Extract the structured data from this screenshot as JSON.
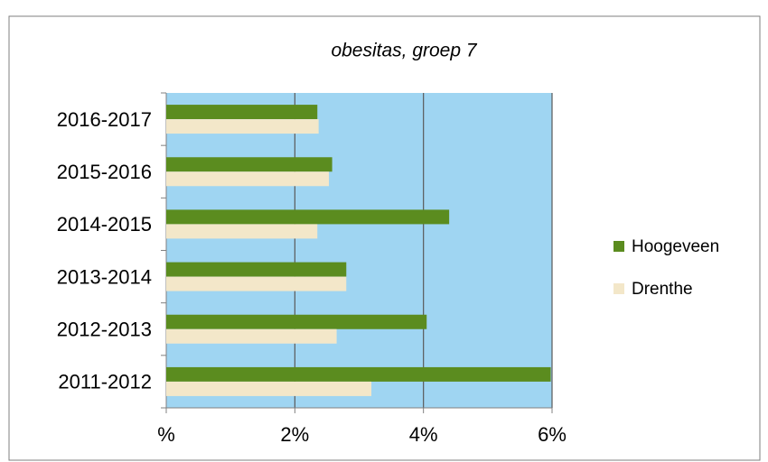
{
  "chart_data": {
    "type": "bar",
    "orientation": "horizontal",
    "title": "obesitas, groep 7",
    "categories": [
      "2011-2012",
      "2012-2013",
      "2013-2014",
      "2014-2015",
      "2015-2016",
      "2016-2017"
    ],
    "series": [
      {
        "name": "Hoogeveen",
        "color": "#5b8c1f",
        "values": [
          5.98,
          4.05,
          2.8,
          4.4,
          2.58,
          2.35
        ]
      },
      {
        "name": "Drenthe",
        "color": "#f3e7c9",
        "values": [
          3.19,
          2.65,
          2.8,
          2.35,
          2.53,
          2.37
        ]
      }
    ],
    "xlim": [
      0,
      6
    ],
    "xticks": [
      {
        "value": 0,
        "label": "%"
      },
      {
        "value": 2,
        "label": "2%"
      },
      {
        "value": 4,
        "label": "4%"
      },
      {
        "value": 6,
        "label": "6%"
      }
    ],
    "grid": true,
    "plot_background": "#9fd5f2",
    "legend": "right"
  }
}
